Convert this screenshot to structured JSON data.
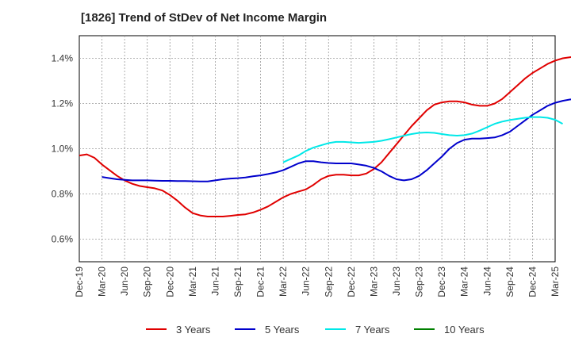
{
  "chart_data": {
    "type": "line",
    "title": "[1826]  Trend of StDev of Net Income Margin",
    "xlabel": "",
    "ylabel": "",
    "x_ticks": [
      "Dec-19",
      "Mar-20",
      "Jun-20",
      "Sep-20",
      "Dec-20",
      "Mar-21",
      "Jun-21",
      "Sep-21",
      "Dec-21",
      "Mar-22",
      "Jun-22",
      "Sep-22",
      "Dec-22",
      "Mar-23",
      "Jun-23",
      "Sep-23",
      "Dec-23",
      "Mar-24",
      "Jun-24",
      "Sep-24",
      "Dec-24",
      "Mar-25"
    ],
    "y_ticks": [
      "0.6%",
      "0.8%",
      "1.0%",
      "1.2%",
      "1.4%"
    ],
    "ylim": [
      0.5,
      1.5
    ],
    "grid": true,
    "legend_position": "bottom",
    "series": [
      {
        "name": "3 Years",
        "color": "#e00000",
        "start_month": 0,
        "values": [
          0.97,
          0.975,
          0.96,
          0.93,
          0.905,
          0.88,
          0.86,
          0.845,
          0.835,
          0.83,
          0.825,
          0.815,
          0.795,
          0.77,
          0.74,
          0.715,
          0.705,
          0.7,
          0.7,
          0.7,
          0.703,
          0.707,
          0.71,
          0.718,
          0.73,
          0.745,
          0.765,
          0.785,
          0.8,
          0.81,
          0.82,
          0.84,
          0.865,
          0.88,
          0.885,
          0.885,
          0.882,
          0.882,
          0.89,
          0.91,
          0.94,
          0.98,
          1.02,
          1.06,
          1.1,
          1.135,
          1.17,
          1.195,
          1.205,
          1.21,
          1.21,
          1.205,
          1.195,
          1.19,
          1.19,
          1.2,
          1.22,
          1.25,
          1.28,
          1.31,
          1.335,
          1.355,
          1.375,
          1.39,
          1.4,
          1.405,
          1.41,
          1.41,
          1.41,
          1.4
        ]
      },
      {
        "name": "5 Years",
        "color": "#0000cc",
        "start_month": 3,
        "values": [
          0.875,
          0.87,
          0.865,
          0.862,
          0.86,
          0.86,
          0.86,
          0.859,
          0.858,
          0.858,
          0.857,
          0.857,
          0.856,
          0.855,
          0.855,
          0.86,
          0.865,
          0.868,
          0.87,
          0.873,
          0.878,
          0.882,
          0.888,
          0.895,
          0.905,
          0.92,
          0.935,
          0.945,
          0.945,
          0.94,
          0.937,
          0.935,
          0.935,
          0.935,
          0.93,
          0.925,
          0.915,
          0.9,
          0.88,
          0.865,
          0.86,
          0.865,
          0.88,
          0.905,
          0.935,
          0.965,
          1.0,
          1.025,
          1.04,
          1.045,
          1.045,
          1.047,
          1.05,
          1.06,
          1.075,
          1.1,
          1.125,
          1.15,
          1.17,
          1.19,
          1.203,
          1.212,
          1.218,
          1.22,
          1.22,
          1.215
        ]
      },
      {
        "name": "7 Years",
        "color": "#00e8e8",
        "start_month": 27,
        "values": [
          0.94,
          0.955,
          0.97,
          0.99,
          1.005,
          1.015,
          1.025,
          1.03,
          1.03,
          1.028,
          1.026,
          1.028,
          1.03,
          1.035,
          1.042,
          1.05,
          1.058,
          1.065,
          1.07,
          1.072,
          1.07,
          1.065,
          1.06,
          1.058,
          1.06,
          1.067,
          1.08,
          1.095,
          1.11,
          1.12,
          1.127,
          1.132,
          1.137,
          1.14,
          1.14,
          1.137,
          1.128,
          1.11
        ]
      },
      {
        "name": "10 Years",
        "color": "#008000",
        "start_month": 0,
        "values": []
      }
    ]
  }
}
